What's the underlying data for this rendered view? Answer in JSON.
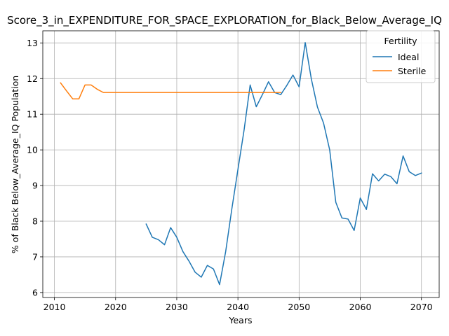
{
  "chart_data": {
    "type": "line",
    "title": "Score_3_in_EXPENDITURE_FOR_SPACE_EXPLORATION_for_Black_Below_Average_IQ",
    "xlabel": "Years",
    "ylabel": "% of Black Below_Average_IQ Population",
    "xlim": [
      2008.1,
      2072.9
    ],
    "ylim": [
      5.86,
      13.34
    ],
    "x_ticks": [
      2010,
      2020,
      2030,
      2040,
      2050,
      2060,
      2070
    ],
    "y_ticks": [
      6,
      7,
      8,
      9,
      10,
      11,
      12,
      13
    ],
    "grid": true,
    "legend": {
      "title": "Fertility",
      "position": "top-right"
    },
    "series": [
      {
        "name": "Ideal",
        "color": "#1f77b4",
        "x": [
          2025,
          2026,
          2027,
          2028,
          2029,
          2030,
          2031,
          2032,
          2033,
          2034,
          2035,
          2036,
          2037,
          2038,
          2039,
          2040,
          2041,
          2042,
          2043,
          2044,
          2045,
          2046,
          2047,
          2048,
          2049,
          2050,
          2051,
          2052,
          2053,
          2054,
          2055,
          2056,
          2057,
          2058,
          2059,
          2060,
          2061,
          2062,
          2063,
          2064,
          2065,
          2066,
          2067,
          2068,
          2069,
          2070
        ],
        "y": [
          7.92,
          7.55,
          7.48,
          7.34,
          7.82,
          7.55,
          7.15,
          6.88,
          6.57,
          6.43,
          6.76,
          6.66,
          6.22,
          7.15,
          8.34,
          9.45,
          10.55,
          11.82,
          11.21,
          11.55,
          11.91,
          11.61,
          11.55,
          11.81,
          12.1,
          11.77,
          13.01,
          11.99,
          11.2,
          10.75,
          10.0,
          8.53,
          8.09,
          8.06,
          7.74,
          8.65,
          8.33,
          9.33,
          9.13,
          9.32,
          9.25,
          9.05,
          9.83,
          9.39,
          9.28,
          9.35
        ]
      },
      {
        "name": "Sterile",
        "color": "#ff7f0e",
        "x": [
          2011,
          2012,
          2013,
          2014,
          2015,
          2016,
          2017,
          2018,
          2019,
          2020,
          2021,
          2022,
          2023,
          2024,
          2025,
          2026,
          2027,
          2028,
          2029,
          2030,
          2031,
          2032,
          2033,
          2034,
          2035,
          2036,
          2037,
          2038,
          2039,
          2040,
          2041,
          2042,
          2043,
          2044,
          2045,
          2046,
          2047
        ],
        "y": [
          11.88,
          11.65,
          11.43,
          11.43,
          11.82,
          11.82,
          11.7,
          11.61,
          11.61,
          11.61,
          11.61,
          11.61,
          11.61,
          11.61,
          11.61,
          11.61,
          11.61,
          11.61,
          11.61,
          11.61,
          11.61,
          11.61,
          11.61,
          11.61,
          11.61,
          11.61,
          11.61,
          11.61,
          11.61,
          11.61,
          11.61,
          11.61,
          11.61,
          11.61,
          11.61,
          11.61,
          11.61
        ]
      }
    ]
  }
}
